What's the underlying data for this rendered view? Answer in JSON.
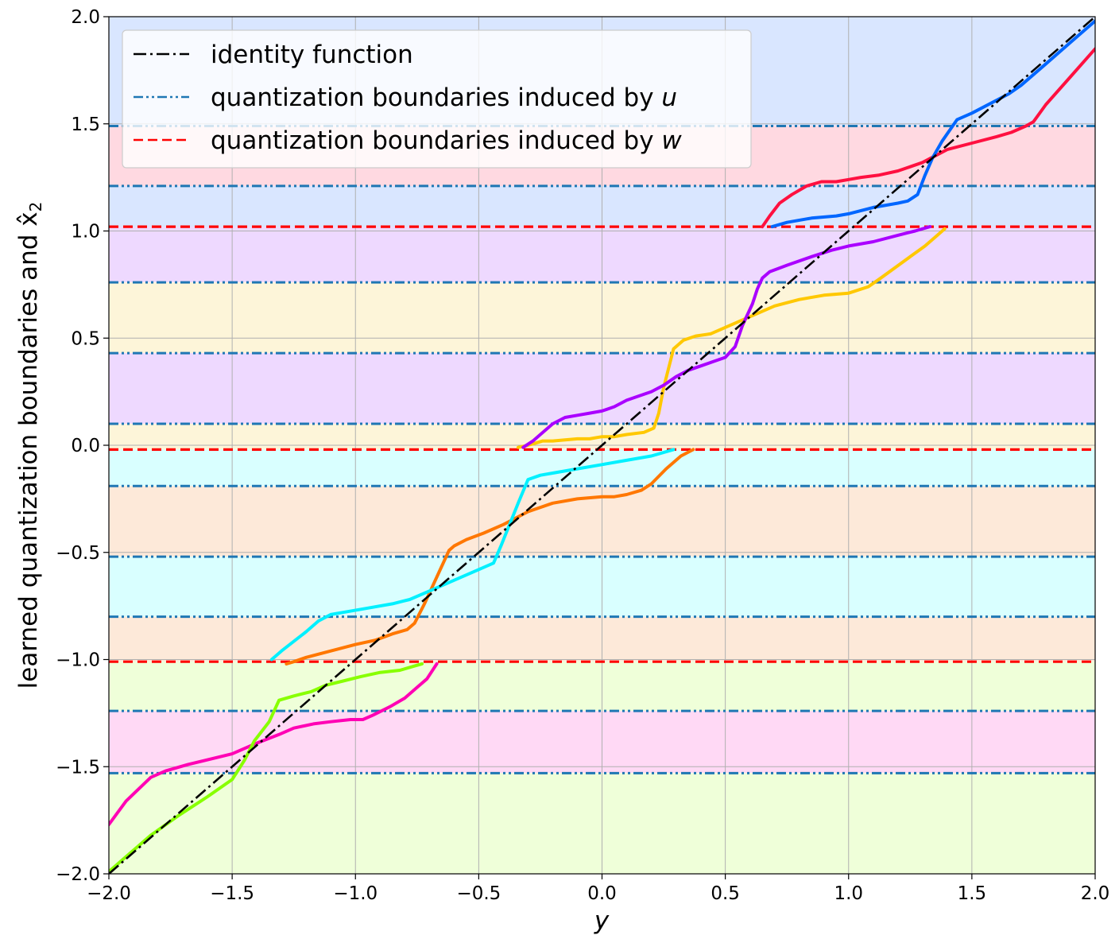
{
  "chart_data": {
    "type": "line",
    "xlabel": "y",
    "ylabel": "learned quantization boundaries and x̂",
    "ylabel_subscript": "2",
    "xlim": [
      -2.0,
      2.0
    ],
    "ylim": [
      -2.0,
      2.0
    ],
    "x_ticks": [
      -2.0,
      -1.5,
      -1.0,
      -0.5,
      0.0,
      0.5,
      1.0,
      1.5,
      2.0
    ],
    "x_tick_labels": [
      "−2.0",
      "−1.5",
      "−1.0",
      "−0.5",
      "0.0",
      "0.5",
      "1.0",
      "1.5",
      "2.0"
    ],
    "y_ticks": [
      -2.0,
      -1.5,
      -1.0,
      -0.5,
      0.0,
      0.5,
      1.0,
      1.5,
      2.0
    ],
    "y_tick_labels": [
      "−2.0",
      "−1.5",
      "−1.0",
      "−0.5",
      "0.0",
      "0.5",
      "1.0",
      "1.5",
      "2.0"
    ],
    "grid": true,
    "legend_position": "top-left",
    "legend": [
      {
        "label": "identity function",
        "style": "dashdot",
        "color": "#000000"
      },
      {
        "label": "quantization boundaries induced by ",
        "math": "u",
        "style": "dashdotdot",
        "color": "#1f77b4"
      },
      {
        "label": "quantization boundaries induced by ",
        "math": "w",
        "style": "dashed",
        "color": "#ff0000"
      }
    ],
    "bands": [
      {
        "y0": 1.49,
        "y1": 2.0,
        "color": "#d9e6ff"
      },
      {
        "y0": 1.02,
        "y1": 1.49,
        "color": "#ffd9e1"
      },
      {
        "y0": 1.02,
        "y1": 1.21,
        "color": "#d9e6ff"
      },
      {
        "y0": 0.76,
        "y1": 1.02,
        "color": "#eed9ff"
      },
      {
        "y0": 0.43,
        "y1": 0.76,
        "color": "#fdf5d9"
      },
      {
        "y0": 0.1,
        "y1": 0.43,
        "color": "#eed9ff"
      },
      {
        "y0": -0.02,
        "y1": 0.1,
        "color": "#fdf5d9"
      },
      {
        "y0": -0.19,
        "y1": -0.02,
        "color": "#d9ffff"
      },
      {
        "y0": -0.52,
        "y1": -0.19,
        "color": "#fde9d9"
      },
      {
        "y0": -0.8,
        "y1": -0.52,
        "color": "#d9ffff"
      },
      {
        "y0": -1.01,
        "y1": -0.8,
        "color": "#fde9d9"
      },
      {
        "y0": -1.24,
        "y1": -1.01,
        "color": "#efffd9"
      },
      {
        "y0": -1.53,
        "y1": -1.24,
        "color": "#ffd9f5"
      },
      {
        "y0": -2.0,
        "y1": -1.53,
        "color": "#efffd9"
      }
    ],
    "u_boundaries": [
      1.49,
      1.21,
      0.76,
      0.43,
      0.1,
      -0.19,
      -0.52,
      -0.8,
      -1.24,
      -1.53
    ],
    "w_boundaries": [
      1.02,
      -0.02,
      -1.01
    ],
    "identity": {
      "x": [
        -2.0,
        2.0
      ],
      "y": [
        -2.0,
        2.0
      ],
      "color": "#000000"
    },
    "series": [
      {
        "color": "#ff00b4",
        "x": [
          -2.0,
          -1.93,
          -1.83,
          -1.77,
          -1.68,
          -1.5,
          -1.4,
          -1.31,
          -1.25,
          -1.17,
          -1.1,
          -1.02,
          -0.97,
          -0.93,
          -0.86,
          -0.8,
          -0.75,
          -0.71,
          -0.67
        ],
        "y": [
          -1.77,
          -1.66,
          -1.55,
          -1.52,
          -1.49,
          -1.44,
          -1.39,
          -1.35,
          -1.32,
          -1.3,
          -1.29,
          -1.28,
          -1.28,
          -1.26,
          -1.22,
          -1.18,
          -1.13,
          -1.09,
          -1.02
        ]
      },
      {
        "color": "#88ff00",
        "x": [
          -2.0,
          -1.93,
          -1.83,
          -1.72,
          -1.6,
          -1.5,
          -1.45,
          -1.41,
          -1.35,
          -1.31,
          -1.25,
          -1.18,
          -1.12,
          -1.05,
          -0.98,
          -0.9,
          -0.82,
          -0.76,
          -0.73
        ],
        "y": [
          -1.99,
          -1.92,
          -1.82,
          -1.73,
          -1.64,
          -1.56,
          -1.47,
          -1.38,
          -1.29,
          -1.19,
          -1.17,
          -1.15,
          -1.12,
          -1.1,
          -1.08,
          -1.06,
          -1.05,
          -1.03,
          -1.02
        ]
      },
      {
        "color": "#ff7700",
        "x": [
          -1.28,
          -1.25,
          -1.2,
          -1.1,
          -1.0,
          -0.92,
          -0.85,
          -0.79,
          -0.76,
          -0.72,
          -0.66,
          -0.62,
          -0.6,
          -0.55,
          -0.48,
          -0.4,
          -0.3,
          -0.2,
          -0.1,
          0.0,
          0.05,
          0.1,
          0.16,
          0.2,
          0.26,
          0.32,
          0.37
        ],
        "y": [
          -1.02,
          -1.01,
          -0.99,
          -0.96,
          -0.93,
          -0.91,
          -0.88,
          -0.86,
          -0.83,
          -0.74,
          -0.59,
          -0.49,
          -0.47,
          -0.44,
          -0.41,
          -0.37,
          -0.31,
          -0.27,
          -0.25,
          -0.24,
          -0.24,
          -0.23,
          -0.21,
          -0.18,
          -0.11,
          -0.05,
          -0.02
        ]
      },
      {
        "color": "#00f0ff",
        "x": [
          -1.34,
          -1.3,
          -1.2,
          -1.15,
          -1.1,
          -1.05,
          -0.95,
          -0.85,
          -0.78,
          -0.7,
          -0.6,
          -0.5,
          -0.44,
          -0.41,
          -0.34,
          -0.3,
          -0.25,
          -0.2,
          -0.1,
          0.0,
          0.1,
          0.2,
          0.29
        ],
        "y": [
          -1.0,
          -0.96,
          -0.87,
          -0.82,
          -0.79,
          -0.78,
          -0.76,
          -0.74,
          -0.72,
          -0.68,
          -0.63,
          -0.58,
          -0.55,
          -0.47,
          -0.27,
          -0.16,
          -0.14,
          -0.13,
          -0.11,
          -0.09,
          -0.07,
          -0.05,
          -0.02
        ]
      },
      {
        "color": "#ffc800",
        "x": [
          -0.34,
          -0.3,
          -0.27,
          -0.24,
          -0.2,
          -0.1,
          -0.05,
          0.0,
          0.05,
          0.1,
          0.17,
          0.21,
          0.23,
          0.25,
          0.29,
          0.33,
          0.38,
          0.44,
          0.5,
          0.6,
          0.7,
          0.8,
          0.9,
          1.0,
          1.08,
          1.13,
          1.25,
          1.31,
          1.35,
          1.39
        ],
        "y": [
          -0.01,
          0.0,
          0.01,
          0.02,
          0.02,
          0.03,
          0.03,
          0.04,
          0.04,
          0.05,
          0.06,
          0.08,
          0.15,
          0.27,
          0.45,
          0.49,
          0.51,
          0.52,
          0.55,
          0.6,
          0.65,
          0.68,
          0.7,
          0.71,
          0.74,
          0.78,
          0.88,
          0.93,
          0.97,
          1.01
        ]
      },
      {
        "color": "#aa00ff",
        "x": [
          -0.32,
          -0.28,
          -0.25,
          -0.2,
          -0.15,
          -0.1,
          -0.05,
          0.0,
          0.05,
          0.1,
          0.15,
          0.2,
          0.25,
          0.3,
          0.35,
          0.4,
          0.45,
          0.5,
          0.54,
          0.57,
          0.61,
          0.63,
          0.65,
          0.68,
          0.75,
          0.85,
          0.93,
          1.0,
          1.1,
          1.2,
          1.27,
          1.33
        ],
        "y": [
          -0.01,
          0.02,
          0.05,
          0.1,
          0.13,
          0.14,
          0.15,
          0.16,
          0.18,
          0.21,
          0.23,
          0.25,
          0.28,
          0.32,
          0.35,
          0.37,
          0.39,
          0.41,
          0.46,
          0.56,
          0.66,
          0.73,
          0.78,
          0.81,
          0.84,
          0.88,
          0.91,
          0.93,
          0.95,
          0.98,
          1.0,
          1.02
        ]
      },
      {
        "color": "#ff1040",
        "x": [
          0.65,
          0.68,
          0.72,
          0.77,
          0.83,
          0.89,
          0.95,
          1.0,
          1.05,
          1.12,
          1.2,
          1.25,
          1.3,
          1.35,
          1.4,
          1.5,
          1.6,
          1.66,
          1.72,
          1.75,
          1.8,
          1.9,
          2.0
        ],
        "y": [
          1.02,
          1.07,
          1.13,
          1.17,
          1.21,
          1.23,
          1.23,
          1.24,
          1.25,
          1.26,
          1.28,
          1.3,
          1.32,
          1.35,
          1.38,
          1.41,
          1.44,
          1.46,
          1.49,
          1.51,
          1.59,
          1.72,
          1.85
        ]
      },
      {
        "color": "#0066ff",
        "x": [
          0.69,
          0.75,
          0.85,
          0.95,
          1.0,
          1.1,
          1.2,
          1.24,
          1.28,
          1.31,
          1.34,
          1.38,
          1.44,
          1.5,
          1.6,
          1.65,
          1.7,
          1.8,
          1.9,
          2.0
        ],
        "y": [
          1.02,
          1.04,
          1.06,
          1.07,
          1.08,
          1.11,
          1.13,
          1.14,
          1.17,
          1.26,
          1.34,
          1.42,
          1.52,
          1.55,
          1.61,
          1.64,
          1.68,
          1.78,
          1.88,
          1.98
        ]
      }
    ]
  }
}
